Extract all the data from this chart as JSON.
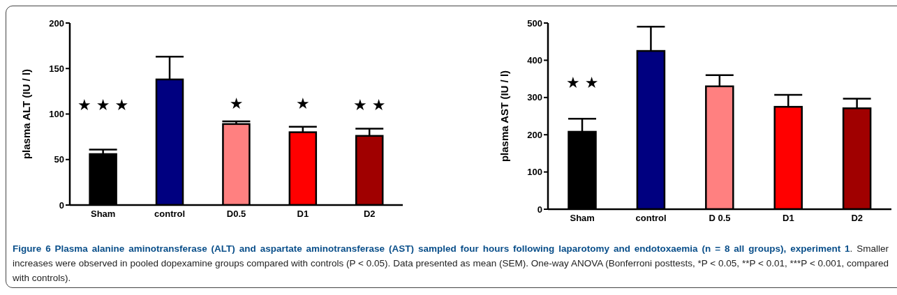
{
  "chart_data": [
    {
      "type": "bar",
      "ylabel": "plasma ALT (IU / l)",
      "categories": [
        "Sham",
        "control",
        "D0.5",
        "D1",
        "D2"
      ],
      "values": [
        56,
        138,
        89,
        80,
        76
      ],
      "colors": [
        "#000000",
        "#000080",
        "#ff8080",
        "#ff0000",
        "#a00000"
      ],
      "errors": [
        [
          56,
          61
        ],
        [
          138,
          163
        ],
        [
          89,
          92
        ],
        [
          80,
          86
        ],
        [
          76,
          84
        ]
      ],
      "ylim": [
        0,
        200
      ],
      "yticks": [
        0,
        50,
        100,
        150,
        200
      ],
      "annotations": [
        "★ ★ ★",
        "★",
        "★",
        "★ ★",
        "Figure 6 Plasma alanine aminotransferase (ALT) and aspartate aminotransferase (AST) sampled four hours following laparotomy and endotoxaemia (n = 8 all groups), experiment 1",
        ". Smaller increases were observed in pooled dopexamine groups compared with controls (P < 0.05). Data presented as mean (SEM). One-way ANOVA (Bonferroni posttests, *P < 0.05, **P < 0.01, ***P < 0.001, compared with controls)."
      ]
    },
    {
      "type": "bar",
      "ylabel": "plasma AST (IU / l)",
      "categories": [
        "Sham",
        "control",
        "D 0.5",
        "D1",
        "D2"
      ],
      "values": [
        208,
        425,
        330,
        275,
        271
      ],
      "colors": [
        "#000000",
        "#000080",
        "#ff8080",
        "#ff0000",
        "#a00000"
      ],
      "errors": [
        [
          208,
          243
        ],
        [
          425,
          490
        ],
        [
          330,
          360
        ],
        [
          275,
          307
        ],
        [
          271,
          297
        ]
      ],
      "ylim": [
        0,
        500
      ],
      "yticks": [
        0,
        100,
        200,
        300,
        400,
        500
      ],
      "annotations": [
        "★ ★"
      ]
    }
  ]
}
